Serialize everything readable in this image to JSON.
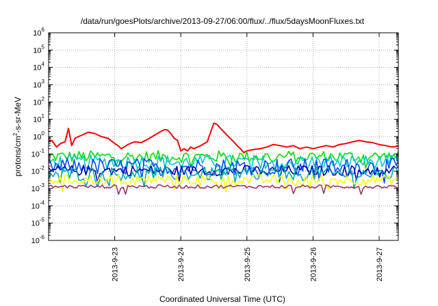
{
  "chart_data": {
    "type": "line",
    "title": "/data/run/goesPlots/archive/2013-09-27/06:00/flux/../flux/5daysMoonFluxes.txt",
    "xlabel": "Coordinated Universal Time (UTC)",
    "ylabel": {
      "prefix": "protons/cm",
      "sup": "2",
      "suffix": "-s-sr-MeV"
    },
    "y_scale": "log",
    "ylim": [
      1e-06,
      1000000.0
    ],
    "y_ticks": [
      {
        "base": "10",
        "exp": "-6"
      },
      {
        "base": "10",
        "exp": "-5"
      },
      {
        "base": "10",
        "exp": "-4"
      },
      {
        "base": "10",
        "exp": "-3"
      },
      {
        "base": "10",
        "exp": "-2"
      },
      {
        "base": "10",
        "exp": "-1"
      },
      {
        "base": "10",
        "exp": "0"
      },
      {
        "base": "10",
        "exp": "1"
      },
      {
        "base": "10",
        "exp": "2"
      },
      {
        "base": "10",
        "exp": "3"
      },
      {
        "base": "10",
        "exp": "4"
      },
      {
        "base": "10",
        "exp": "5"
      },
      {
        "base": "10",
        "exp": "6"
      }
    ],
    "xlim": [
      "2013-09-22 00:00",
      "2013-09-27 07:00"
    ],
    "x_ticks": [
      "2013-9-23",
      "2013-9-24",
      "2013-9-25",
      "2013-9-26",
      "2013-9-27"
    ],
    "grid": true,
    "series": [
      {
        "color": "#ff0000",
        "x_days": [
          22.0,
          22.05,
          22.12,
          22.18,
          22.25,
          22.3,
          22.35,
          22.4,
          22.45,
          22.5,
          22.6,
          22.7,
          22.8,
          22.9,
          23.0,
          23.05,
          23.1,
          23.2,
          23.3,
          23.4,
          23.5,
          23.6,
          23.7,
          23.75,
          23.8,
          23.85,
          23.9,
          23.95,
          24.0,
          24.05,
          24.1,
          24.15,
          24.2,
          24.3,
          24.4,
          24.5,
          24.55,
          24.6,
          24.7,
          24.8,
          24.85,
          24.9,
          24.95,
          25.0,
          25.1,
          25.2,
          25.3,
          25.4,
          25.5,
          25.6,
          25.7,
          25.8,
          25.9,
          26.0,
          26.1,
          26.2,
          26.3,
          26.4,
          26.5,
          26.6,
          26.7,
          26.8,
          26.9,
          27.0,
          27.1,
          27.2,
          27.29
        ],
        "values": [
          0.5,
          0.6,
          0.25,
          0.4,
          0.5,
          3.0,
          0.3,
          0.8,
          1.0,
          1.2,
          1.8,
          1.5,
          1.0,
          0.8,
          0.4,
          0.3,
          0.2,
          0.35,
          0.5,
          0.45,
          0.7,
          1.2,
          2.0,
          2.5,
          2.4,
          1.5,
          0.8,
          0.6,
          0.15,
          0.2,
          0.15,
          0.25,
          0.2,
          0.3,
          0.5,
          6.0,
          5.0,
          3.0,
          1.2,
          0.5,
          0.3,
          0.2,
          0.12,
          0.15,
          0.18,
          0.2,
          0.25,
          0.35,
          0.3,
          0.25,
          0.3,
          0.2,
          0.25,
          0.2,
          0.25,
          0.3,
          0.25,
          0.35,
          0.4,
          0.5,
          0.6,
          0.5,
          0.45,
          0.35,
          0.3,
          0.25,
          0.28
        ]
      },
      {
        "color": "#00e000",
        "base": 0.07,
        "spread": 0.7,
        "low": 1.0,
        "high": 1.0
      },
      {
        "color": "#00c8c8",
        "base": 0.035,
        "spread": 0.8,
        "low": 1.0,
        "high": 1.0
      },
      {
        "color": "#0050ff",
        "base": 0.018,
        "spread": 1.0,
        "low": 1.0,
        "high": 1.0
      },
      {
        "color": "#0000b0",
        "base": 0.011,
        "spread": 0.6,
        "low": 1.0,
        "high": 1.0
      },
      {
        "color": "#00aaaa",
        "base": 0.007,
        "spread": 0.8,
        "low": 1.0,
        "high": 1.0
      },
      {
        "color": "#ffff00",
        "base": 0.0032,
        "spread": 0.6,
        "low": 1.0,
        "high": 1.0
      },
      {
        "color": "#993366",
        "base": 0.0013,
        "spread": 0.2,
        "low": 1.0,
        "high": 1.0
      }
    ]
  }
}
